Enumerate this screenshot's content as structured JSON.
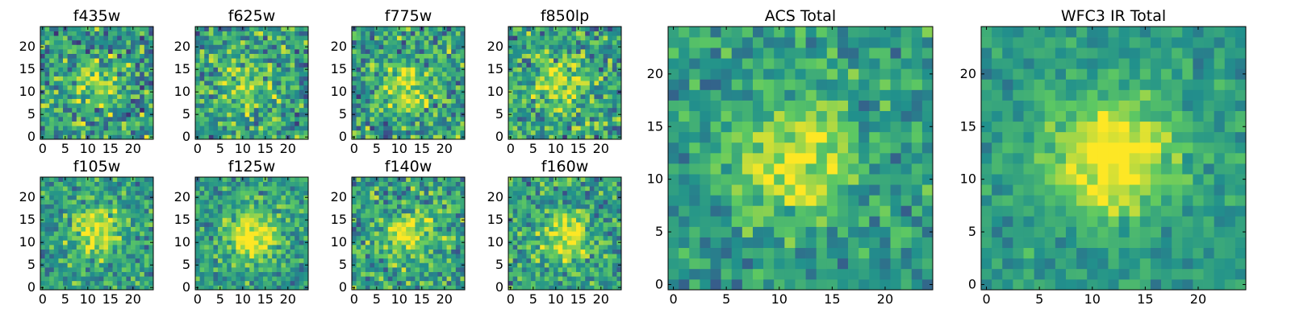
{
  "figure": {
    "colormap": "viridis",
    "colormap_stops": [
      "#440154",
      "#3b528b",
      "#21918c",
      "#5ec962",
      "#fde725"
    ],
    "grid_size": 25
  },
  "chart_data": [
    {
      "type": "heatmap",
      "title": "f435w",
      "grid": [
        25,
        25
      ],
      "xlim": [
        0,
        24
      ],
      "ylim": [
        0,
        24
      ],
      "xticks": [
        "0",
        "5",
        "10",
        "15",
        "20"
      ],
      "yticks": [
        "0",
        "5",
        "10",
        "15",
        "20"
      ],
      "peak_center": [
        11,
        12
      ],
      "peak_strength": 0.25,
      "noise": 0.32
    },
    {
      "type": "heatmap",
      "title": "f625w",
      "grid": [
        25,
        25
      ],
      "xlim": [
        0,
        24
      ],
      "ylim": [
        0,
        24
      ],
      "xticks": [
        "0",
        "5",
        "10",
        "15",
        "20"
      ],
      "yticks": [
        "0",
        "5",
        "10",
        "15",
        "20"
      ],
      "peak_center": [
        11,
        12
      ],
      "peak_strength": 0.3,
      "noise": 0.3
    },
    {
      "type": "heatmap",
      "title": "f775w",
      "grid": [
        25,
        25
      ],
      "xlim": [
        0,
        24
      ],
      "ylim": [
        0,
        24
      ],
      "xticks": [
        "0",
        "5",
        "10",
        "15",
        "20"
      ],
      "yticks": [
        "0",
        "5",
        "10",
        "15",
        "20"
      ],
      "peak_center": [
        11,
        11
      ],
      "peak_strength": 0.35,
      "noise": 0.3
    },
    {
      "type": "heatmap",
      "title": "f850lp",
      "grid": [
        25,
        25
      ],
      "xlim": [
        0,
        24
      ],
      "ylim": [
        0,
        24
      ],
      "xticks": [
        "0",
        "5",
        "10",
        "15",
        "20"
      ],
      "yticks": [
        "0",
        "5",
        "10",
        "15",
        "20"
      ],
      "peak_center": [
        11,
        11
      ],
      "peak_strength": 0.4,
      "noise": 0.3
    },
    {
      "type": "heatmap",
      "title": "f105w",
      "grid": [
        25,
        25
      ],
      "xlim": [
        0,
        24
      ],
      "ylim": [
        0,
        24
      ],
      "xticks": [
        "0",
        "5",
        "10",
        "15",
        "20"
      ],
      "yticks": [
        "0",
        "5",
        "10",
        "15",
        "20"
      ],
      "peak_center": [
        12,
        12
      ],
      "peak_strength": 0.45,
      "noise": 0.24
    },
    {
      "type": "heatmap",
      "title": "f125w",
      "grid": [
        25,
        25
      ],
      "xlim": [
        0,
        24
      ],
      "ylim": [
        0,
        24
      ],
      "xticks": [
        "0",
        "5",
        "10",
        "15",
        "20"
      ],
      "yticks": [
        "0",
        "5",
        "10",
        "15",
        "20"
      ],
      "peak_center": [
        12,
        11
      ],
      "peak_strength": 0.5,
      "noise": 0.22
    },
    {
      "type": "heatmap",
      "title": "f140w",
      "grid": [
        25,
        25
      ],
      "xlim": [
        0,
        24
      ],
      "ylim": [
        0,
        24
      ],
      "xticks": [
        "0",
        "5",
        "10",
        "15",
        "20"
      ],
      "yticks": [
        "0",
        "5",
        "10",
        "15",
        "20"
      ],
      "peak_center": [
        12,
        12
      ],
      "peak_strength": 0.4,
      "noise": 0.28
    },
    {
      "type": "heatmap",
      "title": "f160w",
      "grid": [
        25,
        25
      ],
      "xlim": [
        0,
        24
      ],
      "ylim": [
        0,
        24
      ],
      "xticks": [
        "0",
        "5",
        "10",
        "15",
        "20"
      ],
      "yticks": [
        "0",
        "5",
        "10",
        "15",
        "20"
      ],
      "peak_center": [
        12,
        11
      ],
      "peak_strength": 0.45,
      "noise": 0.26
    },
    {
      "type": "heatmap",
      "title": "ACS Total",
      "grid": [
        25,
        25
      ],
      "xlim": [
        0,
        24
      ],
      "ylim": [
        0,
        24
      ],
      "xticks": [
        "0",
        "5",
        "10",
        "15",
        "20"
      ],
      "yticks": [
        "0",
        "5",
        "10",
        "15",
        "20"
      ],
      "peak_center": [
        11,
        12
      ],
      "peak_strength": 0.4,
      "noise": 0.2
    },
    {
      "type": "heatmap",
      "title": "WFC3 IR Total",
      "grid": [
        25,
        25
      ],
      "xlim": [
        0,
        24
      ],
      "ylim": [
        0,
        24
      ],
      "xticks": [
        "0",
        "5",
        "10",
        "15",
        "20"
      ],
      "yticks": [
        "0",
        "5",
        "10",
        "15",
        "20"
      ],
      "peak_center": [
        12,
        12
      ],
      "peak_strength": 0.55,
      "noise": 0.14
    }
  ]
}
